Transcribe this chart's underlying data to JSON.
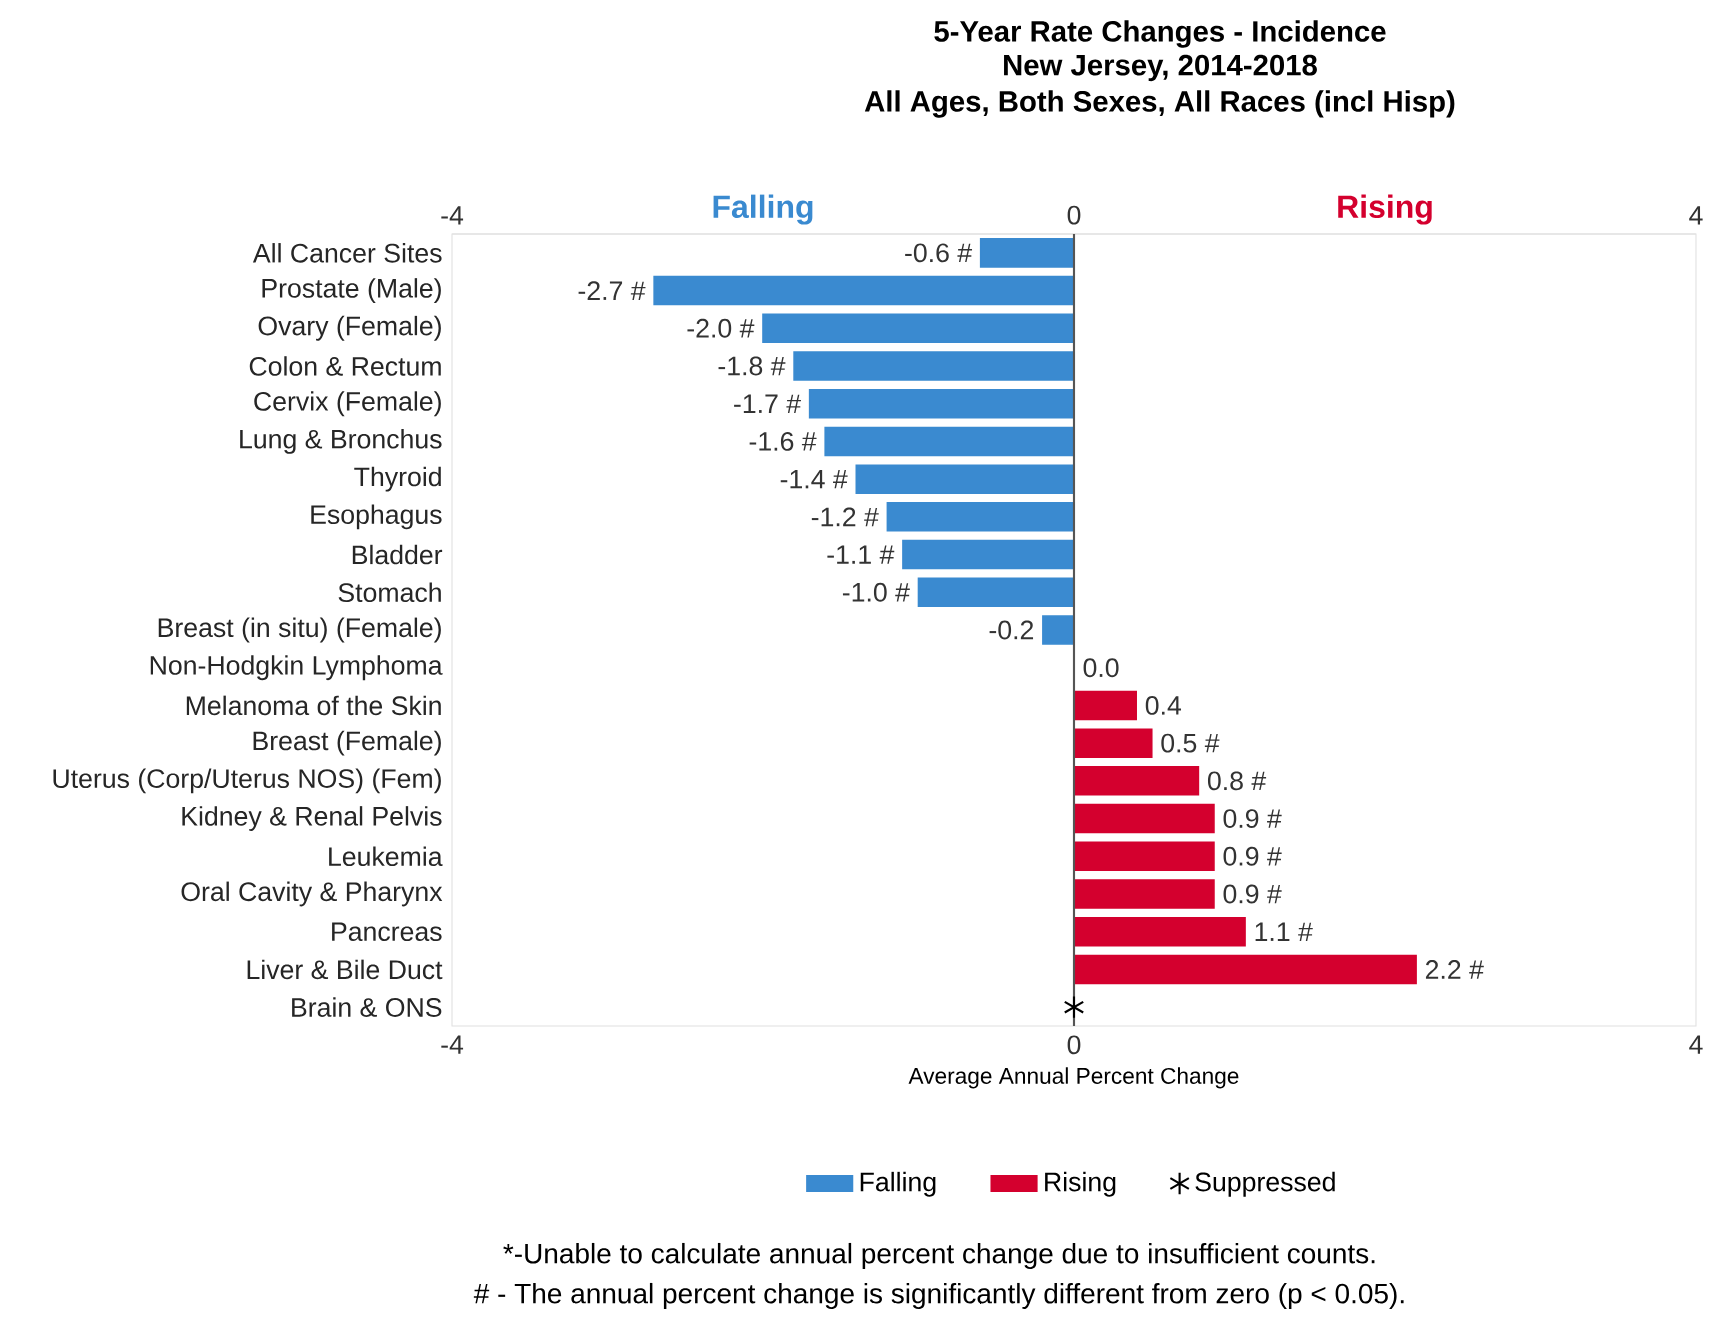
{
  "chart_data": {
    "type": "bar",
    "orientation": "horizontal",
    "title": "5-Year Rate Changes - Incidence",
    "subtitle": "New Jersey, 2014-2018",
    "xlabel": "Average Annual Percent Change",
    "categories": [
      "All Cancer Sites",
      "Prostate (Male)",
      "Ovary (Female)",
      "Colon & Rectum",
      "Cervix (Female)",
      "Lung & Bronchus",
      "Thyroid",
      "Esophagus",
      "Bladder",
      "Stomach",
      "Breast (in situ) (Female)",
      "Non-Hodgkin Lymphoma",
      "Melanoma of the Skin",
      "Breast (Female)",
      "Uterus (Corp/Uterus NOS) (Fem)",
      "Kidney & Renal Pelvis",
      "Leukemia",
      "Oral Cavity & Pharynx",
      "Pancreas",
      "Liver & Bile Duct",
      "Brain & ONS"
    ],
    "series": [
      {
        "name": "Falling",
        "color": "#3a8ad0",
        "values": [
          -0.6,
          -2.7,
          -2.0,
          -1.8,
          -1.7,
          -1.6,
          -1.4,
          -1.2,
          -1.1,
          -1.0,
          -0.2,
          null,
          null,
          null,
          null,
          null,
          null,
          null,
          null,
          null,
          null
        ],
        "value_labels": [
          "-0.6 #",
          "-2.7 #",
          "-2.0 #",
          "-1.8 #",
          "-1.7 #",
          "-1.6 #",
          "-1.4 #",
          "-1.2 #",
          "-1.1 #",
          "-1.0 #",
          "-0.2",
          null,
          null,
          null,
          null,
          null,
          null,
          null,
          null,
          null,
          null
        ]
      },
      {
        "name": "Rising",
        "color": "#d4002e",
        "values": [
          null,
          null,
          null,
          null,
          null,
          null,
          null,
          null,
          null,
          null,
          null,
          0.0,
          0.4,
          0.5,
          0.8,
          0.9,
          0.9,
          0.9,
          1.1,
          2.2,
          null
        ],
        "value_labels": [
          null,
          null,
          null,
          null,
          null,
          null,
          null,
          null,
          null,
          null,
          null,
          "0.0",
          "0.4",
          "0.5 #",
          "0.8 #",
          "0.9 #",
          "0.9 #",
          "0.9 #",
          "1.1 #",
          "2.2 #",
          null
        ]
      },
      {
        "name": "Suppressed",
        "type": "scatter",
        "marker": "cross",
        "color": "#000000",
        "values": [
          null,
          null,
          null,
          null,
          null,
          null,
          null,
          null,
          null,
          null,
          null,
          null,
          null,
          null,
          null,
          null,
          null,
          null,
          null,
          null,
          0
        ]
      }
    ],
    "xlim": [
      -4,
      4
    ],
    "xticks": [
      -4,
      0,
      4
    ],
    "x2lim": [
      -4,
      4
    ],
    "x2ticks": [
      -4,
      0,
      4
    ],
    "ref_lines": [
      {
        "axis": "x",
        "value": 0,
        "color": "#555555"
      }
    ],
    "legend": "bottom",
    "annotations": [
      "Falling",
      "Rising",
      "All Ages, Both Sexes, All Races (incl Hisp)",
      "*-Unable to calculate annual percent change due to insufficient counts.",
      "# - The annual percent change is significantly different from zero (p < 0.05)."
    ]
  }
}
